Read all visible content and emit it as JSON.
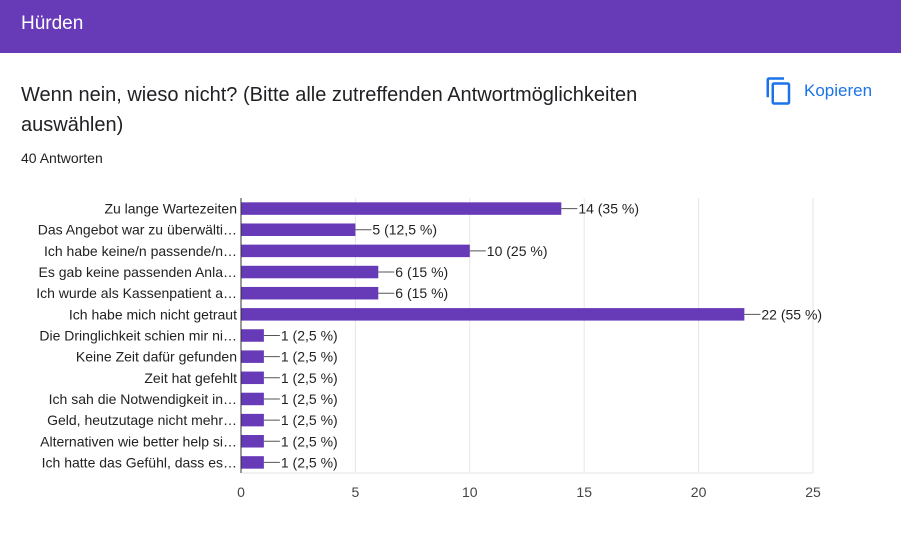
{
  "header": {
    "title": "Hürden"
  },
  "question": {
    "title": "Wenn nein, wieso nicht? (Bitte alle zutreffenden Antwortmöglichkeiten auswählen)"
  },
  "responses": {
    "count_label": "40 Antworten"
  },
  "actions": {
    "copy_label": "Kopieren",
    "copy_icon": "copy-icon"
  },
  "colors": {
    "header": "#673ab7",
    "bar": "#673ab7",
    "accent": "#1a73e8"
  },
  "chart_data": {
    "type": "bar",
    "orientation": "horizontal",
    "categories": [
      "Zu lange Wartezeiten",
      "Das Angebot war zu überwälti…",
      "Ich habe keine/n passende/n…",
      "Es gab keine passenden Anla…",
      "Ich wurde als Kassenpatient a…",
      "Ich habe mich nicht getraut",
      "Die Dringlichkeit schien mir ni…",
      "Keine Zeit dafür gefunden",
      "Zeit hat gefehlt",
      "Ich sah die Notwendigkeit in…",
      "Geld, heutzutage nicht mehr…",
      "Alternativen wie better help si…",
      "Ich hatte das Gefühl, dass es…"
    ],
    "values": [
      14,
      5,
      10,
      6,
      6,
      22,
      1,
      1,
      1,
      1,
      1,
      1,
      1
    ],
    "value_labels": [
      "14 (35 %)",
      "5 (12,5 %)",
      "10 (25 %)",
      "6 (15 %)",
      "6 (15 %)",
      "22 (55 %)",
      "1 (2,5 %)",
      "1 (2,5 %)",
      "1 (2,5 %)",
      "1 (2,5 %)",
      "1 (2,5 %)",
      "1 (2,5 %)",
      "1 (2,5 %)"
    ],
    "xlim": [
      0,
      25
    ],
    "xticks": [
      "0",
      "5",
      "10",
      "15",
      "20",
      "25"
    ],
    "grid": true
  }
}
